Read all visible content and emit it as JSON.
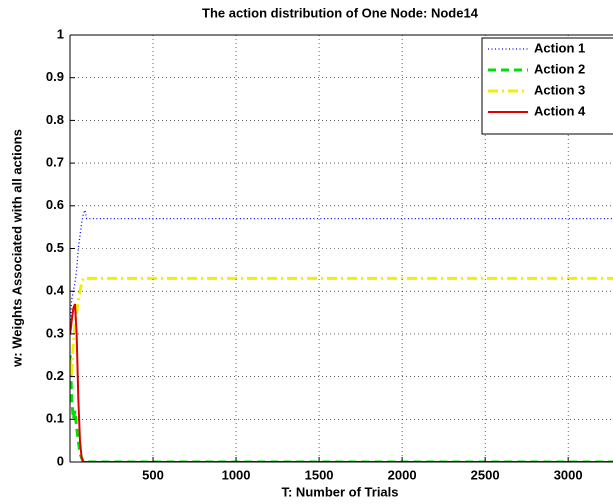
{
  "chart_data": {
    "type": "line",
    "title": "The action distribution of One Node: Node14",
    "x_label": "T: Number of Trials",
    "y_label": "w: Weights Associated with all actions",
    "x": [
      1,
      10,
      20,
      30,
      40,
      50,
      60,
      70,
      80,
      90,
      100,
      3270
    ],
    "series": [
      {
        "name": "Action 1",
        "color": "#0000ff",
        "linestyle": "dotted",
        "values": [
          0.3,
          0.38,
          0.4,
          0.42,
          0.45,
          0.5,
          0.53,
          0.56,
          0.58,
          0.59,
          0.57,
          0.57
        ]
      },
      {
        "name": "Action 2",
        "color": "#00e000",
        "linestyle": "dashed",
        "values": [
          0.25,
          0.15,
          0.1,
          0.12,
          0.08,
          0.05,
          0.02,
          0.01,
          0,
          0,
          0,
          0
        ]
      },
      {
        "name": "Action 3",
        "color": "#f0f000",
        "linestyle": "dashdot",
        "values": [
          0.24,
          0.2,
          0.28,
          0.32,
          0.35,
          0.38,
          0.4,
          0.42,
          0.43,
          0.43,
          0.43,
          0.43
        ]
      },
      {
        "name": "Action 4",
        "color": "#e00000",
        "linestyle": "solid",
        "values": [
          0.3,
          0.33,
          0.36,
          0.37,
          0.3,
          0.15,
          0.05,
          0.01,
          0,
          0,
          0,
          0
        ]
      }
    ],
    "xlim": [
      0,
      3270
    ],
    "ylim": [
      0,
      1
    ],
    "xticks": [
      500,
      1000,
      1500,
      2000,
      2500,
      3000
    ],
    "yticks": [
      0,
      0.1,
      0.2,
      0.3,
      0.4,
      0.5,
      0.6,
      0.7,
      0.8,
      0.9,
      1
    ],
    "grid": true,
    "legend": "top-right"
  }
}
